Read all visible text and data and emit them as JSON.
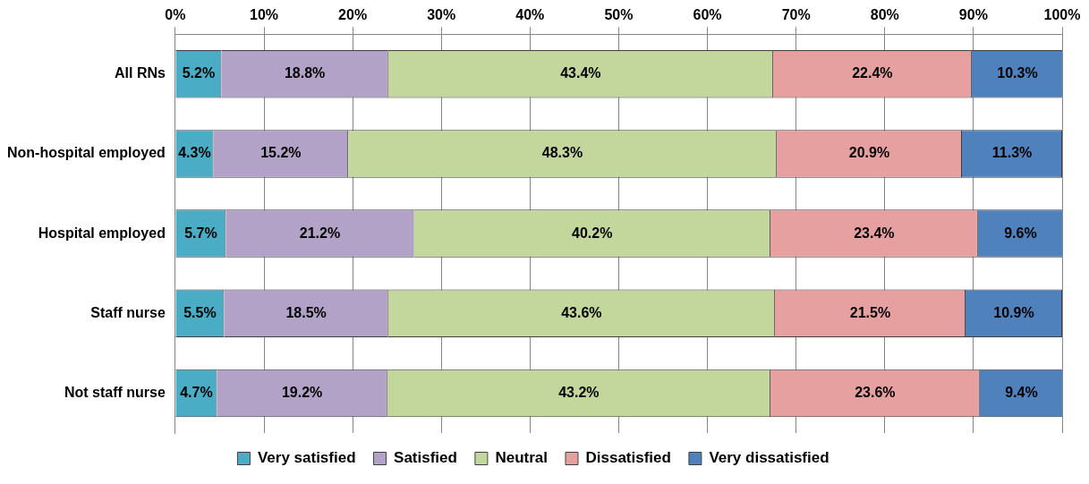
{
  "chart_data": {
    "type": "bar",
    "orientation": "horizontal",
    "stacked": true,
    "categories": [
      "All RNs",
      "Non-hospital employed",
      "Hospital employed",
      "Staff nurse",
      "Not staff nurse"
    ],
    "series": [
      {
        "name": "Very satisfied",
        "color": "#4bacc6",
        "values": [
          5.2,
          4.3,
          5.7,
          5.5,
          4.7
        ],
        "value_labels": [
          "5.2%",
          "4.3%",
          "5.7%",
          "5.5%",
          "4.7%"
        ]
      },
      {
        "name": "Satisfied",
        "color": "#b3a2c7",
        "values": [
          18.8,
          15.2,
          21.2,
          18.5,
          19.2
        ],
        "value_labels": [
          "18.8%",
          "15.2%",
          "21.2%",
          "18.5%",
          "19.2%"
        ]
      },
      {
        "name": "Neutral",
        "color": "#c3d69b",
        "values": [
          43.4,
          48.3,
          40.2,
          43.6,
          43.2
        ],
        "value_labels": [
          "43.4%",
          "48.3%",
          "40.2%",
          "43.6%",
          "43.2%"
        ]
      },
      {
        "name": "Dissatisfied",
        "color": "#e6a0a0",
        "values": [
          22.4,
          20.9,
          23.4,
          21.5,
          23.6
        ],
        "value_labels": [
          "22.4%",
          "20.9%",
          "23.4%",
          "21.5%",
          "23.6%"
        ]
      },
      {
        "name": "Very dissatisfied",
        "color": "#4f81bd",
        "values": [
          10.3,
          11.3,
          9.6,
          10.9,
          9.4
        ],
        "value_labels": [
          "10.3%",
          "11.3%",
          "9.6%",
          "10.9%",
          "9.4%"
        ]
      }
    ],
    "xlim": [
      0,
      100
    ],
    "xticks": [
      {
        "value": 0,
        "label": "0%"
      },
      {
        "value": 10,
        "label": "10%"
      },
      {
        "value": 20,
        "label": "20%"
      },
      {
        "value": 30,
        "label": "30%"
      },
      {
        "value": 40,
        "label": "40%"
      },
      {
        "value": 50,
        "label": "50%"
      },
      {
        "value": 60,
        "label": "60%"
      },
      {
        "value": 70,
        "label": "70%"
      },
      {
        "value": 80,
        "label": "80%"
      },
      {
        "value": 90,
        "label": "90%"
      },
      {
        "value": 100,
        "label": "100%"
      }
    ],
    "grid": "x",
    "legend": "bottom"
  }
}
